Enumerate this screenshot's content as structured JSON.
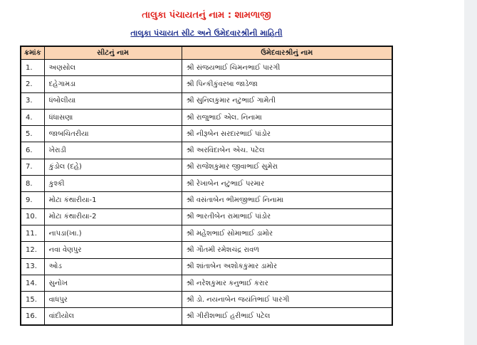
{
  "title": "તાલુકા પંચાયતનું નામ : શામળાજી",
  "subtitle": "તાલુકા પંચાયત સીટ અને ઉમેદવારશ્રીની માહિતી",
  "table": {
    "headers": [
      "ક્રમાંક",
      "સીટનું નામ",
      "ઉમેદવારશ્રીનું નામ"
    ],
    "rows": [
      [
        "1.",
        "અણસોલ",
        "શ્રી સંજયભાઈ ચિમનભાઈ પારગી"
      ],
      [
        "2.",
        "દહેગામડા",
        "શ્રી પિન્કીકુંવરબા  જાડેજા"
      ],
      [
        "3.",
        "ધંબોલીયા",
        "શ્રી સુનિલકુમાર નટુભાઈ ગામેતી"
      ],
      [
        "4.",
        "ધંધાસણા",
        "શ્રી રાજુભાઈ એલ. નિનામા"
      ],
      [
        "5.",
        "જાબચિતરીયા",
        "શ્રી નીરૂબેન સરદારભાઈ  પાંડોર"
      ],
      [
        "6.",
        "ખેરાડી",
        "શ્રી અરવિંદાબેન એચ.  પટેલ"
      ],
      [
        "7.",
        "કુંડોલ (દહે)",
        "શ્રી રાજેશકુમાર જીવાભાઈ સુમેરા"
      ],
      [
        "8.",
        "કુશ્કી",
        "શ્રી રેખાબેન નટુભાઈ પરમાર"
      ],
      [
        "9.",
        "મોટા કંથારીયા-1",
        "શ્રી વસંતાબેન  ભીમજીભાઈ નિનામા"
      ],
      [
        "10.",
        "મોટા કંથારીયા-2",
        "શ્રી ભારતીબેન રામાભાઈ  પાંડોર"
      ],
      [
        "11.",
        "નાપડા(ખા.)",
        "શ્રી મહેશભાઈ સોમાભાઈ ડામોર"
      ],
      [
        "12.",
        "નવા વેણપુર",
        "શ્રી ગૌતમી રમેશચંદ્ર રાવળ"
      ],
      [
        "13.",
        "ઓડ",
        "શ્રી શાંતાબેન અશોકકુમાર ડામોર"
      ],
      [
        "14.",
        "સુનોખ",
        "શ્રી નરેશકુમાર કનુભાઈ કરાર"
      ],
      [
        "15.",
        "વાધપુર",
        "શ્રી ડો. નયનાબેન જયંતિભાઈ પારગી"
      ],
      [
        "16.",
        "વાંદીયોલ",
        "શ્રી ગીરીશભાઈ હરીભાઈ પટેલ"
      ]
    ]
  },
  "colors": {
    "title": "#e0201a",
    "subtitle": "#1a2b8c",
    "header_bg": "#fbd5b5"
  }
}
